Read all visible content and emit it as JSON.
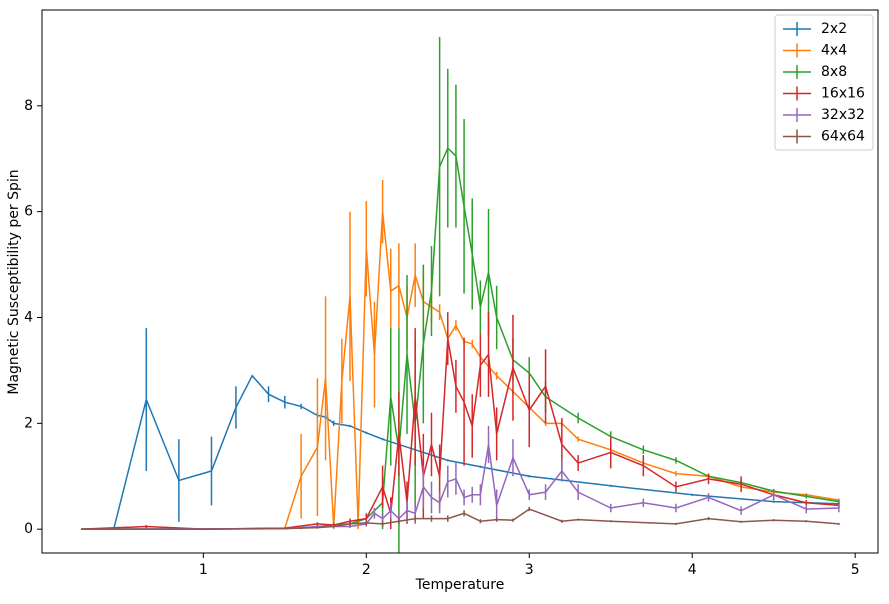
{
  "chart_data": {
    "type": "errorbar-line",
    "x_label": "Temperature",
    "y_label": "Magnetic Susceptibility per Spin",
    "xlim": [
      0.01,
      5.14
    ],
    "ylim": [
      -0.45,
      9.81
    ],
    "xticks": [
      1,
      2,
      3,
      4,
      5
    ],
    "yticks": [
      0,
      2,
      4,
      6,
      8
    ],
    "legend": "upper right",
    "series": [
      {
        "name": "2x2",
        "color": "#1f77b4",
        "x": [
          0.25,
          0.45,
          0.65,
          0.85,
          1.05,
          1.2,
          1.3,
          1.4,
          1.5,
          1.6,
          1.7,
          1.75,
          1.8,
          1.9,
          2.0,
          2.1,
          2.3,
          2.5,
          2.7,
          3.0,
          3.5,
          4.0,
          4.5,
          4.9
        ],
        "values": [
          0,
          0,
          2.45,
          0.92,
          1.1,
          2.3,
          2.9,
          2.55,
          2.4,
          2.32,
          2.15,
          2.12,
          2.0,
          1.95,
          1.82,
          1.7,
          1.5,
          1.3,
          1.18,
          1.0,
          0.82,
          0.65,
          0.52,
          0.48
        ],
        "errors": [
          0,
          0,
          1.35,
          0.78,
          0.65,
          0.4,
          0,
          0.15,
          0.12,
          0.05,
          0.05,
          0.05,
          0.05,
          0.02,
          0.02,
          0.02,
          0.02,
          0.02,
          0.02,
          0.02,
          0.02,
          0.02,
          0.02,
          0.02
        ]
      },
      {
        "name": "4x4",
        "color": "#ff7f0e",
        "x": [
          0.25,
          0.5,
          1.0,
          1.5,
          1.6,
          1.7,
          1.75,
          1.8,
          1.85,
          1.9,
          1.95,
          2.0,
          2.05,
          2.1,
          2.15,
          2.2,
          2.25,
          2.3,
          2.35,
          2.4,
          2.45,
          2.5,
          2.55,
          2.6,
          2.65,
          2.7,
          2.8,
          2.9,
          3.0,
          3.1,
          3.2,
          3.3,
          3.5,
          3.7,
          3.9,
          4.1,
          4.3,
          4.5,
          4.7,
          4.9
        ],
        "values": [
          0,
          0,
          0,
          0.02,
          1.0,
          1.55,
          2.85,
          0.05,
          2.8,
          4.4,
          0.1,
          5.3,
          3.3,
          6.0,
          4.5,
          4.6,
          4.0,
          4.8,
          4.3,
          4.2,
          4.1,
          3.6,
          3.85,
          3.55,
          3.5,
          3.25,
          2.9,
          2.6,
          2.3,
          2.0,
          2.0,
          1.7,
          1.5,
          1.25,
          1.05,
          1.0,
          0.8,
          0.7,
          0.65,
          0.55
        ],
        "errors": [
          0,
          0,
          0,
          0.02,
          0.8,
          1.3,
          1.55,
          0.05,
          0.8,
          1.6,
          0.1,
          0.9,
          1.0,
          0.6,
          0.8,
          0.8,
          0.6,
          0.6,
          0.6,
          0.3,
          0.15,
          0.15,
          0.1,
          0.08,
          0.08,
          0.08,
          0.07,
          0.05,
          0.05,
          0.05,
          0.05,
          0.05,
          0.05,
          0.05,
          0.05,
          0.03,
          0.03,
          0.03,
          0.03,
          0.03
        ]
      },
      {
        "name": "8x8",
        "color": "#2ca02c",
        "x": [
          0.25,
          1.0,
          1.6,
          1.8,
          1.9,
          2.0,
          2.1,
          2.15,
          2.2,
          2.25,
          2.3,
          2.35,
          2.4,
          2.45,
          2.5,
          2.55,
          2.6,
          2.65,
          2.7,
          2.75,
          2.8,
          2.9,
          3.0,
          3.1,
          3.3,
          3.5,
          3.7,
          3.9,
          4.1,
          4.3,
          4.5,
          4.7,
          4.9
        ],
        "values": [
          0,
          0,
          0.02,
          0.08,
          0.1,
          0.2,
          0.5,
          2.5,
          1.5,
          3.3,
          2.0,
          3.5,
          4.5,
          6.85,
          7.2,
          7.05,
          6.1,
          5.2,
          4.2,
          4.85,
          4.0,
          3.2,
          2.95,
          2.5,
          2.1,
          1.75,
          1.5,
          1.3,
          1.0,
          0.88,
          0.72,
          0.62,
          0.52
        ],
        "errors": [
          0,
          0,
          0.02,
          0.05,
          0.05,
          0.1,
          0.5,
          1.3,
          2.3,
          1.5,
          1.6,
          1.5,
          0.85,
          2.45,
          1.5,
          1.35,
          1.65,
          1.05,
          0.5,
          1.2,
          0.6,
          0.4,
          0.3,
          0.3,
          0.1,
          0.1,
          0.08,
          0.06,
          0.05,
          0.05,
          0.04,
          0.04,
          0.03
        ]
      },
      {
        "name": "16x16",
        "color": "#d62728",
        "x": [
          0.25,
          0.65,
          1.0,
          1.5,
          1.7,
          1.8,
          1.9,
          2.0,
          2.1,
          2.15,
          2.2,
          2.25,
          2.3,
          2.35,
          2.4,
          2.45,
          2.5,
          2.55,
          2.6,
          2.65,
          2.7,
          2.75,
          2.8,
          2.9,
          3.0,
          3.1,
          3.2,
          3.3,
          3.5,
          3.7,
          3.9,
          4.1,
          4.3,
          4.5,
          4.7,
          4.9
        ],
        "values": [
          0,
          0.05,
          0,
          0.02,
          0.1,
          0.08,
          0.15,
          0.2,
          0.8,
          0.3,
          1.8,
          0.5,
          2.5,
          1.0,
          1.6,
          1.0,
          3.6,
          2.7,
          2.4,
          1.95,
          3.1,
          3.3,
          1.8,
          3.05,
          2.25,
          2.7,
          1.6,
          1.25,
          1.45,
          1.2,
          0.8,
          0.95,
          0.85,
          0.65,
          0.5,
          0.45
        ],
        "errors": [
          0,
          0.03,
          0,
          0.01,
          0.03,
          0.03,
          0.05,
          0.1,
          0.4,
          0.3,
          0.8,
          0.4,
          1.3,
          0.8,
          0.6,
          0.6,
          0.5,
          0.5,
          1.2,
          0.6,
          0.6,
          0.8,
          0.5,
          1.0,
          0.7,
          0.7,
          0.5,
          0.15,
          0.3,
          0.2,
          0.1,
          0.1,
          0.15,
          0.1,
          0.05,
          0.05
        ]
      },
      {
        "name": "32x32",
        "color": "#9467bd",
        "x": [
          0.25,
          1.5,
          1.7,
          1.8,
          1.9,
          2.0,
          2.05,
          2.1,
          2.15,
          2.2,
          2.25,
          2.3,
          2.35,
          2.4,
          2.45,
          2.5,
          2.55,
          2.6,
          2.65,
          2.7,
          2.75,
          2.8,
          2.9,
          3.0,
          3.1,
          3.2,
          3.3,
          3.5,
          3.7,
          3.9,
          4.1,
          4.3,
          4.5,
          4.7,
          4.9
        ],
        "values": [
          0,
          0.01,
          0.05,
          0.05,
          0.05,
          0.1,
          0.3,
          0.2,
          0.35,
          0.2,
          0.35,
          0.3,
          0.8,
          0.6,
          0.5,
          0.9,
          0.95,
          0.6,
          0.65,
          0.65,
          1.6,
          0.45,
          1.35,
          0.65,
          0.7,
          1.1,
          0.7,
          0.4,
          0.5,
          0.4,
          0.6,
          0.35,
          0.65,
          0.38,
          0.4
        ],
        "errors": [
          0,
          0.01,
          0.02,
          0.03,
          0.03,
          0.05,
          0.1,
          0.1,
          0.15,
          0.1,
          0.2,
          0.2,
          0.4,
          0.3,
          0.2,
          0.3,
          0.3,
          0.15,
          0.15,
          0.2,
          0.35,
          0.3,
          0.35,
          0.1,
          0.15,
          0.2,
          0.15,
          0.08,
          0.08,
          0.08,
          0.08,
          0.08,
          0.08,
          0.08,
          0.08
        ]
      },
      {
        "name": "64x64",
        "color": "#8c564b",
        "x": [
          0.25,
          1.0,
          1.5,
          1.7,
          1.8,
          1.9,
          2.0,
          2.1,
          2.2,
          2.3,
          2.4,
          2.5,
          2.6,
          2.7,
          2.8,
          2.9,
          3.0,
          3.2,
          3.3,
          3.5,
          3.9,
          4.1,
          4.3,
          4.5,
          4.7,
          4.9
        ],
        "values": [
          0,
          0,
          0.01,
          0.03,
          0.05,
          0.1,
          0.12,
          0.1,
          0.15,
          0.2,
          0.2,
          0.2,
          0.3,
          0.15,
          0.18,
          0.17,
          0.38,
          0.15,
          0.18,
          0.15,
          0.1,
          0.2,
          0.14,
          0.17,
          0.15,
          0.1
        ],
        "errors": [
          0,
          0,
          0.01,
          0.02,
          0.02,
          0.03,
          0.04,
          0.05,
          0.06,
          0.06,
          0.06,
          0.06,
          0.06,
          0.04,
          0.04,
          0.03,
          0.04,
          0.03,
          0.02,
          0.02,
          0.02,
          0.03,
          0.02,
          0.02,
          0.02,
          0.02
        ]
      }
    ]
  }
}
